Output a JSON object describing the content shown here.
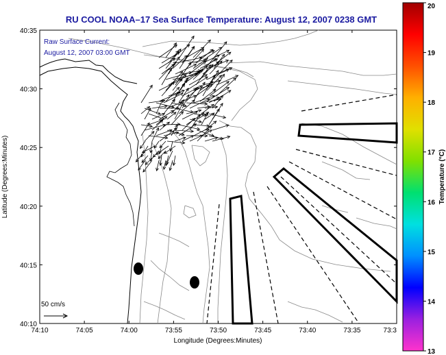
{
  "title": "RU COOL  NOAA–17  Sea Surface Temperature:  August 12, 2007 0238 GMT",
  "annotation": {
    "line1": "Raw Surface Current:",
    "line2": "August 12, 2007 03:00 GMT"
  },
  "scale_label": "50 cm/s",
  "axes": {
    "xlabel": "Longitude (Degrees:Minutes)",
    "ylabel": "Latitude (Degrees:Minutes)",
    "x_ticks": [
      "74:10",
      "74:05",
      "74:00",
      "73:55",
      "73:50",
      "73:45",
      "73:40",
      "73:35",
      "73:3"
    ],
    "y_ticks": [
      "40:35",
      "40:30",
      "40:25",
      "40:20",
      "40:15",
      "40:10"
    ]
  },
  "colorbar": {
    "label": "Temperature (°C)",
    "ticks": [
      "20",
      "19",
      "18",
      "17",
      "16",
      "15",
      "14",
      "13"
    ],
    "min": 13,
    "max": 20,
    "colors": [
      "#ff33cc",
      "#9a20e0",
      "#0000ff",
      "#0090ff",
      "#00e0e0",
      "#00e070",
      "#80e000",
      "#e0e000",
      "#ffb000",
      "#ff5000",
      "#ff0000",
      "#a00000"
    ]
  },
  "map": {
    "x_range": [
      "74:10",
      "73:30"
    ],
    "y_range": [
      "40:10",
      "40:35"
    ]
  }
}
